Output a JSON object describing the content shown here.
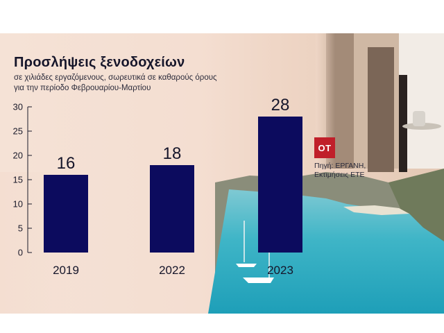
{
  "title": "Προσλήψεις ξενοδοχείων",
  "subtitle_line1": "σε χιλιάδες εργαζόμενους, σωρευτικά σε καθαρούς όρους",
  "subtitle_line2": "για την περίοδο Φεβρουαρίου-Μαρτίου",
  "logo_text": "ΟΤ",
  "source_line1": "Πηγή: ΕΡΓΑΝΗ,",
  "source_line2": "Εκτιμήσεις ΕΤΕ",
  "colors": {
    "bar": "#0c0b5e",
    "logo": "#c01f2a",
    "sea": "#3fb5c7"
  },
  "chart_data": {
    "type": "bar",
    "title": "Προσλήψεις ξενοδοχείων",
    "xlabel": "",
    "ylabel": "",
    "categories": [
      "2019",
      "2022",
      "2023"
    ],
    "values": [
      16,
      18,
      28
    ],
    "value_labels": [
      "16",
      "18",
      "28"
    ],
    "ylim": [
      0,
      30
    ],
    "yticks": [
      0,
      5,
      10,
      15,
      20,
      25,
      30
    ],
    "grid": false,
    "legend": "none"
  }
}
